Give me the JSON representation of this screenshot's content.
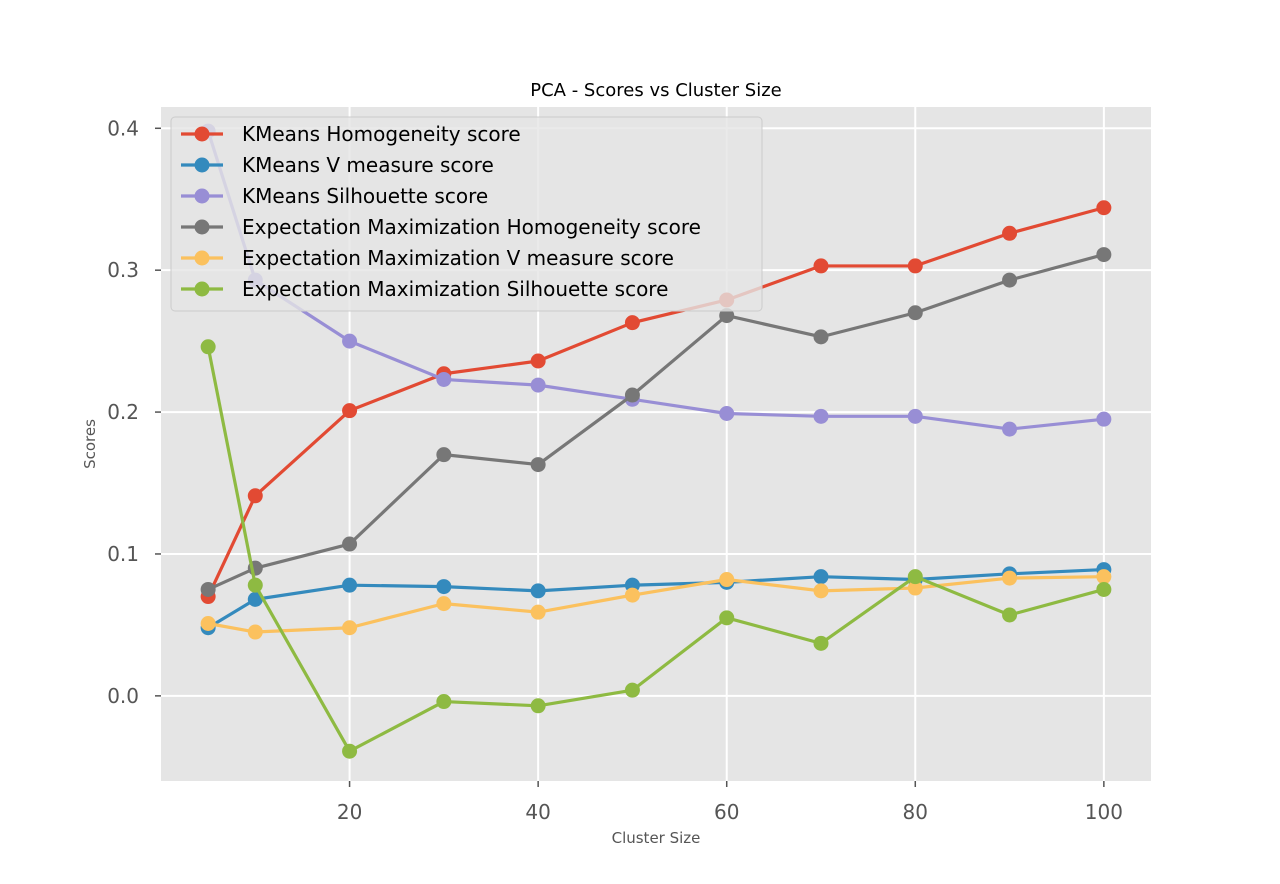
{
  "chart_data": {
    "type": "line",
    "title": "PCA - Scores vs Cluster Size",
    "xlabel": "Cluster Size",
    "ylabel": "Scores",
    "xlim": [
      0,
      105
    ],
    "ylim": [
      -0.06,
      0.415
    ],
    "x_ticks": [
      20,
      40,
      60,
      80,
      100
    ],
    "y_ticks": [
      0.0,
      0.1,
      0.2,
      0.3,
      0.4
    ],
    "x_tick_labels": [
      "20",
      "40",
      "60",
      "80",
      "100"
    ],
    "y_tick_labels": [
      "0.0",
      "0.1",
      "0.2",
      "0.3",
      "0.4"
    ],
    "grid": true,
    "legend_position": "top-left",
    "background_color": "#e5e5e5",
    "x": [
      5,
      10,
      20,
      30,
      40,
      50,
      60,
      70,
      80,
      90,
      100
    ],
    "series": [
      {
        "name": "KMeans Homogeneity score",
        "color": "#e24a33",
        "values": [
          0.07,
          0.141,
          0.201,
          0.227,
          0.236,
          0.263,
          0.279,
          0.303,
          0.303,
          0.326,
          0.344
        ]
      },
      {
        "name": "KMeans V measure score",
        "color": "#348abd",
        "values": [
          0.048,
          0.068,
          0.078,
          0.077,
          0.074,
          0.078,
          0.08,
          0.084,
          0.082,
          0.086,
          0.089
        ]
      },
      {
        "name": "KMeans Silhouette score",
        "color": "#988ed5",
        "values": [
          0.398,
          0.293,
          0.25,
          0.223,
          0.219,
          0.209,
          0.199,
          0.197,
          0.197,
          0.188,
          0.195
        ]
      },
      {
        "name": "Expectation Maximization Homogeneity score",
        "color": "#777777",
        "values": [
          0.075,
          0.09,
          0.107,
          0.17,
          0.163,
          0.212,
          0.268,
          0.253,
          0.27,
          0.293,
          0.311
        ]
      },
      {
        "name": "Expectation Maximization V measure score",
        "color": "#fbc15e",
        "values": [
          0.051,
          0.045,
          0.048,
          0.065,
          0.059,
          0.071,
          0.082,
          0.074,
          0.076,
          0.083,
          0.084
        ]
      },
      {
        "name": "Expectation Maximization Silhouette score",
        "color": "#8eba42",
        "values": [
          0.246,
          0.078,
          -0.039,
          -0.004,
          -0.007,
          0.004,
          0.055,
          0.037,
          0.084,
          0.057,
          0.075
        ]
      }
    ]
  }
}
